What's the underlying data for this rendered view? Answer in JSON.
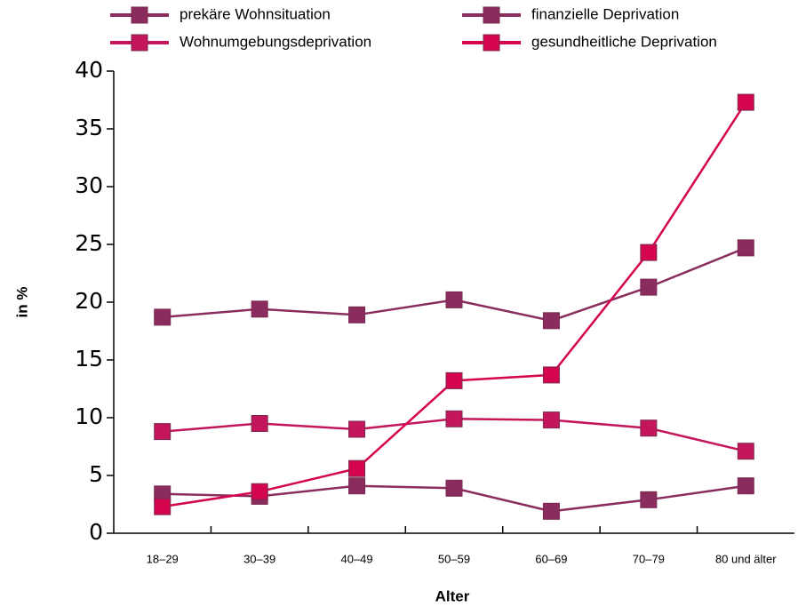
{
  "chart_data": {
    "type": "line",
    "x_label": "Alter",
    "y_label": "in %",
    "categories": [
      "18–29",
      "30–39",
      "40–49",
      "50–59",
      "60–69",
      "70–79",
      "80 und älter"
    ],
    "series": [
      {
        "name": "prekäre Wohnsituation",
        "color": "#8a2c5e",
        "values": [
          3.4,
          3.2,
          4.1,
          3.9,
          1.9,
          2.9,
          4.1
        ]
      },
      {
        "name": "finanzielle Deprivation",
        "color": "#8a2c5e",
        "values": [
          18.7,
          19.4,
          18.9,
          20.2,
          18.4,
          21.3,
          24.7
        ]
      },
      {
        "name": "Wohnumgebungsdeprivation",
        "color": "#c4165a",
        "values": [
          8.8,
          9.5,
          9.0,
          9.9,
          9.8,
          9.1,
          7.1
        ]
      },
      {
        "name": "gesundheitliche Deprivation",
        "color": "#d4044e",
        "values": [
          2.3,
          3.6,
          5.6,
          13.2,
          13.7,
          24.3,
          37.3
        ]
      }
    ],
    "ylim": [
      0,
      40
    ],
    "yticks": [
      0,
      5,
      10,
      15,
      20,
      25,
      30,
      35,
      40
    ],
    "grid": false
  }
}
